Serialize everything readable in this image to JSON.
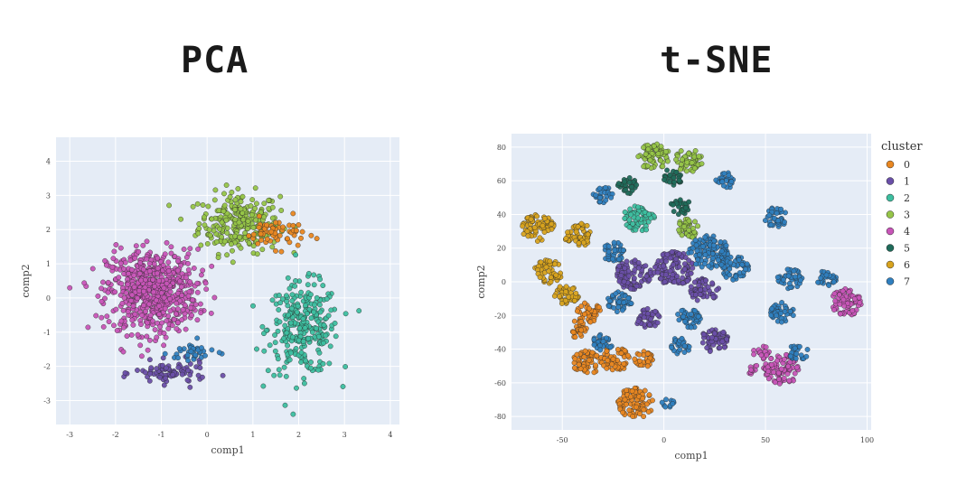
{
  "titles": {
    "pca": "PCA",
    "tsne": "t-SNE"
  },
  "chart_data": [
    {
      "type": "scatter",
      "title": "PCA",
      "xlabel": "comp1",
      "ylabel": "comp2",
      "xlim": [
        -3.3,
        4.2
      ],
      "ylim": [
        -3.7,
        4.7
      ],
      "xticks": [
        -3,
        -2,
        -1,
        0,
        1,
        2,
        3,
        4
      ],
      "yticks": [
        -3,
        -2,
        -1,
        0,
        1,
        2,
        3,
        4
      ],
      "grid": true,
      "legend": null,
      "series": [
        {
          "cluster": "4",
          "color": "#c855b8",
          "center": [
            -1.2,
            0.2
          ],
          "spread": [
            0.9,
            1.1
          ],
          "count": 650
        },
        {
          "cluster": "3",
          "color": "#96c548",
          "center": [
            0.7,
            2.2
          ],
          "spread": [
            0.8,
            0.8
          ],
          "count": 260
        },
        {
          "cluster": "2",
          "color": "#3dbfa0",
          "center": [
            2.1,
            -0.9
          ],
          "spread": [
            0.7,
            1.2
          ],
          "count": 280
        },
        {
          "cluster": "0",
          "color": "#e98721",
          "center": [
            1.5,
            1.9
          ],
          "spread": [
            0.6,
            0.4
          ],
          "count": 60
        },
        {
          "cluster": "1",
          "color": "#6a4fa8",
          "center": [
            -0.8,
            -2.2
          ],
          "spread": [
            0.7,
            0.3
          ],
          "count": 80
        },
        {
          "cluster": "7",
          "color": "#2f7fbf",
          "center": [
            -0.3,
            -1.6
          ],
          "spread": [
            0.5,
            0.3
          ],
          "count": 35
        }
      ]
    },
    {
      "type": "scatter",
      "title": "t-SNE",
      "xlabel": "comp1",
      "ylabel": "comp2",
      "xlim": [
        -75,
        102
      ],
      "ylim": [
        -88,
        88
      ],
      "xticks": [
        -50,
        0,
        50,
        100
      ],
      "yticks": [
        -80,
        -60,
        -40,
        -20,
        0,
        20,
        40,
        60,
        80
      ],
      "grid": true,
      "legend": {
        "title": "cluster",
        "position": "right",
        "entries": [
          {
            "label": "0",
            "color": "#e98721"
          },
          {
            "label": "1",
            "color": "#6a4fa8"
          },
          {
            "label": "2",
            "color": "#3dbfa0"
          },
          {
            "label": "3",
            "color": "#96c548"
          },
          {
            "label": "4",
            "color": "#c855b8"
          },
          {
            "label": "5",
            "color": "#1f6b5a"
          },
          {
            "label": "6",
            "color": "#d8a31e"
          },
          {
            "label": "7",
            "color": "#2f7fbf"
          }
        ]
      },
      "blobs": [
        {
          "c": "#d8a31e",
          "x": -62,
          "y": 32,
          "r": 8
        },
        {
          "c": "#d8a31e",
          "x": -42,
          "y": 28,
          "r": 7
        },
        {
          "c": "#d8a31e",
          "x": -57,
          "y": 6,
          "r": 7
        },
        {
          "c": "#d8a31e",
          "x": -48,
          "y": -8,
          "r": 6
        },
        {
          "c": "#e98721",
          "x": -37,
          "y": -18,
          "r": 6
        },
        {
          "c": "#e98721",
          "x": -43,
          "y": -28,
          "r": 5
        },
        {
          "c": "#e98721",
          "x": -38,
          "y": -48,
          "r": 7
        },
        {
          "c": "#e98721",
          "x": -24,
          "y": -46,
          "r": 7
        },
        {
          "c": "#e98721",
          "x": -14,
          "y": -72,
          "r": 9
        },
        {
          "c": "#e98721",
          "x": -10,
          "y": -46,
          "r": 5
        },
        {
          "c": "#96c548",
          "x": -5,
          "y": 74,
          "r": 8
        },
        {
          "c": "#96c548",
          "x": 12,
          "y": 72,
          "r": 7
        },
        {
          "c": "#3dbfa0",
          "x": -12,
          "y": 38,
          "r": 8
        },
        {
          "c": "#96c548",
          "x": 12,
          "y": 32,
          "r": 6
        },
        {
          "c": "#1f6b5a",
          "x": -18,
          "y": 57,
          "r": 5
        },
        {
          "c": "#1f6b5a",
          "x": 4,
          "y": 62,
          "r": 5
        },
        {
          "c": "#1f6b5a",
          "x": 8,
          "y": 45,
          "r": 5
        },
        {
          "c": "#2f7fbf",
          "x": 30,
          "y": 60,
          "r": 5
        },
        {
          "c": "#2f7fbf",
          "x": -30,
          "y": 52,
          "r": 5
        },
        {
          "c": "#2f7fbf",
          "x": 55,
          "y": 38,
          "r": 6
        },
        {
          "c": "#6a4fa8",
          "x": -15,
          "y": 4,
          "r": 9
        },
        {
          "c": "#6a4fa8",
          "x": 5,
          "y": 8,
          "r": 10
        },
        {
          "c": "#2f7fbf",
          "x": 22,
          "y": 18,
          "r": 10
        },
        {
          "c": "#2f7fbf",
          "x": 35,
          "y": 8,
          "r": 7
        },
        {
          "c": "#6a4fa8",
          "x": 20,
          "y": -5,
          "r": 7
        },
        {
          "c": "#2f7fbf",
          "x": -25,
          "y": 18,
          "r": 6
        },
        {
          "c": "#2f7fbf",
          "x": -22,
          "y": -12,
          "r": 6
        },
        {
          "c": "#6a4fa8",
          "x": -8,
          "y": -22,
          "r": 6
        },
        {
          "c": "#2f7fbf",
          "x": 12,
          "y": -22,
          "r": 6
        },
        {
          "c": "#6a4fa8",
          "x": 25,
          "y": -35,
          "r": 7
        },
        {
          "c": "#2f7fbf",
          "x": 8,
          "y": -38,
          "r": 5
        },
        {
          "c": "#2f7fbf",
          "x": -30,
          "y": -36,
          "r": 5
        },
        {
          "c": "#2f7fbf",
          "x": 58,
          "y": -18,
          "r": 6
        },
        {
          "c": "#2f7fbf",
          "x": 62,
          "y": 2,
          "r": 6
        },
        {
          "c": "#c855b8",
          "x": 90,
          "y": -12,
          "r": 8
        },
        {
          "c": "#2f7fbf",
          "x": 80,
          "y": 2,
          "r": 5
        },
        {
          "c": "#c855b8",
          "x": 58,
          "y": -52,
          "r": 9
        },
        {
          "c": "#c855b8",
          "x": 48,
          "y": -42,
          "r": 4
        },
        {
          "c": "#2f7fbf",
          "x": 66,
          "y": -42,
          "r": 5
        },
        {
          "c": "#c855b8",
          "x": 44,
          "y": -52,
          "r": 3
        },
        {
          "c": "#2f7fbf",
          "x": 2,
          "y": -72,
          "r": 3
        }
      ]
    }
  ]
}
